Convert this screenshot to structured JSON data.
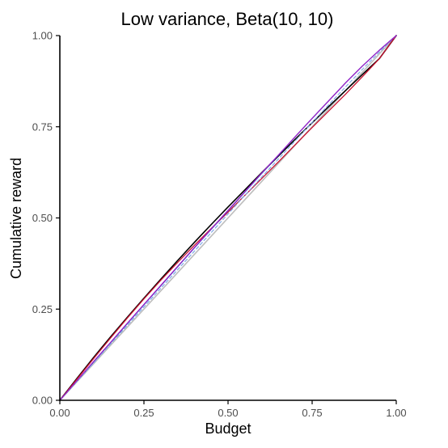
{
  "chart_data": {
    "type": "line",
    "title": "Low variance, Beta(10, 10)",
    "xlabel": "Budget",
    "ylabel": "Cumulative reward",
    "xlim": [
      0,
      1
    ],
    "ylim": [
      0,
      1
    ],
    "x_ticks": [
      "0.00",
      "0.25",
      "0.50",
      "0.75",
      "1.00"
    ],
    "y_ticks": [
      "0.00",
      "0.25",
      "0.50",
      "0.75",
      "1.00"
    ],
    "grid": false,
    "legend": "none",
    "x": [
      0,
      0.05,
      0.1,
      0.15,
      0.2,
      0.25,
      0.3,
      0.35,
      0.4,
      0.45,
      0.5,
      0.55,
      0.6,
      0.65,
      0.7,
      0.75,
      0.8,
      0.85,
      0.9,
      0.95,
      1.0
    ],
    "series": [
      {
        "color": "#bdbdbd",
        "width": 1.6,
        "values": [
          0,
          0.05,
          0.1,
          0.15,
          0.2,
          0.25,
          0.3,
          0.35,
          0.4,
          0.45,
          0.5,
          0.55,
          0.6,
          0.65,
          0.7,
          0.75,
          0.8,
          0.85,
          0.9,
          0.95,
          1.0
        ]
      },
      {
        "color": "#000000",
        "width": 1.6,
        "values": [
          0,
          0.059,
          0.117,
          0.173,
          0.227,
          0.28,
          0.332,
          0.383,
          0.433,
          0.482,
          0.53,
          0.577,
          0.624,
          0.67,
          0.716,
          0.761,
          0.806,
          0.85,
          0.894,
          0.937,
          1.0
        ]
      },
      {
        "color": "#c8102e",
        "width": 1.3,
        "values": [
          0,
          0.057,
          0.114,
          0.17,
          0.225,
          0.278,
          0.329,
          0.378,
          0.425,
          0.471,
          0.516,
          0.562,
          0.608,
          0.654,
          0.701,
          0.748,
          0.794,
          0.84,
          0.888,
          0.937,
          1.0
        ]
      },
      {
        "color": "#1f3fbf",
        "width": 1.3,
        "values": [
          0,
          0.052,
          0.105,
          0.157,
          0.21,
          0.262,
          0.314,
          0.366,
          0.418,
          0.469,
          0.52,
          0.571,
          0.622,
          0.672,
          0.723,
          0.773,
          0.822,
          0.871,
          0.917,
          0.96,
          1.0
        ]
      },
      {
        "color": "#7fa7e6",
        "width": 1.2,
        "dash": "4,3",
        "values": [
          0,
          0.051,
          0.102,
          0.154,
          0.205,
          0.256,
          0.307,
          0.358,
          0.409,
          0.46,
          0.511,
          0.562,
          0.612,
          0.662,
          0.712,
          0.762,
          0.811,
          0.86,
          0.908,
          0.955,
          1.0
        ]
      },
      {
        "color": "#a020c8",
        "width": 1.2,
        "values": [
          0,
          0.053,
          0.106,
          0.158,
          0.211,
          0.263,
          0.315,
          0.367,
          0.419,
          0.47,
          0.521,
          0.572,
          0.623,
          0.673,
          0.723,
          0.773,
          0.822,
          0.871,
          0.917,
          0.96,
          1.0
        ]
      }
    ]
  }
}
